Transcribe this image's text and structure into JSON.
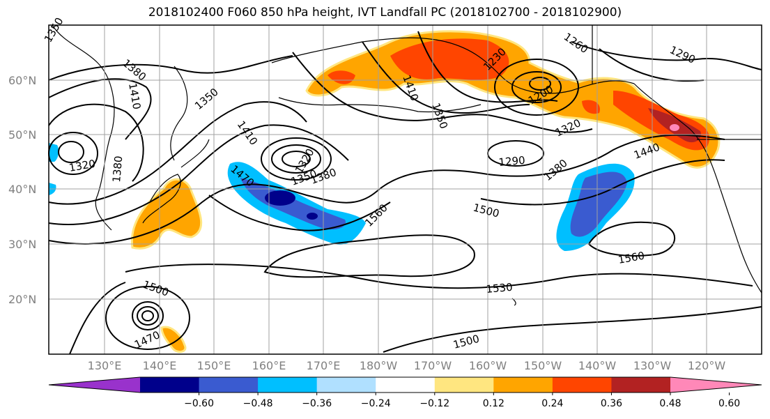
{
  "title": "2018102400 F060 850 hPa height, IVT Landfall PC (2018102700 - 2018102900)",
  "latitude_labels": [
    "60°N",
    "50°N",
    "40°N",
    "30°N",
    "20°N"
  ],
  "longitude_labels": [
    "130°E",
    "140°E",
    "150°E",
    "160°E",
    "170°E",
    "180°W",
    "170°W",
    "160°W",
    "150°W",
    "140°W",
    "130°W",
    "120°W"
  ],
  "contour_labels": [
    "1350",
    "1380",
    "1410",
    "1350",
    "1410",
    "1320",
    "1380",
    "1470",
    "1320",
    "1350",
    "1380",
    "1410",
    "1350",
    "1230",
    "1260",
    "1290",
    "1200",
    "1320",
    "1290",
    "1380",
    "1440",
    "1500",
    "1560",
    "1560",
    "1530",
    "1500",
    "1470",
    "1500"
  ],
  "colorbar": {
    "tick_labels": [
      "−0.60",
      "−0.48",
      "−0.36",
      "−0.24",
      "−0.12",
      "0.12",
      "0.24",
      "0.36",
      "0.48",
      "0.60"
    ],
    "colors": [
      "#9932cc",
      "#00008b",
      "#3a5bd0",
      "#00bfff",
      "#b0e0ff",
      "#ffffff",
      "#ffe680",
      "#ffa500",
      "#ff4500",
      "#b22222",
      "#ff88b8"
    ],
    "extend": "both"
  },
  "colors": {
    "positive_orange": "#ffa500",
    "positive_red": "#ff4500",
    "positive_darkred": "#b22222",
    "positive_pink": "#ff88b8",
    "positive_yellow": "#ffe680",
    "negative_cyan": "#00bfff",
    "negative_blue": "#3a5bd0",
    "negative_navy": "#00008b",
    "contour_line": "#000000",
    "gridline": "#a0a0a0"
  }
}
